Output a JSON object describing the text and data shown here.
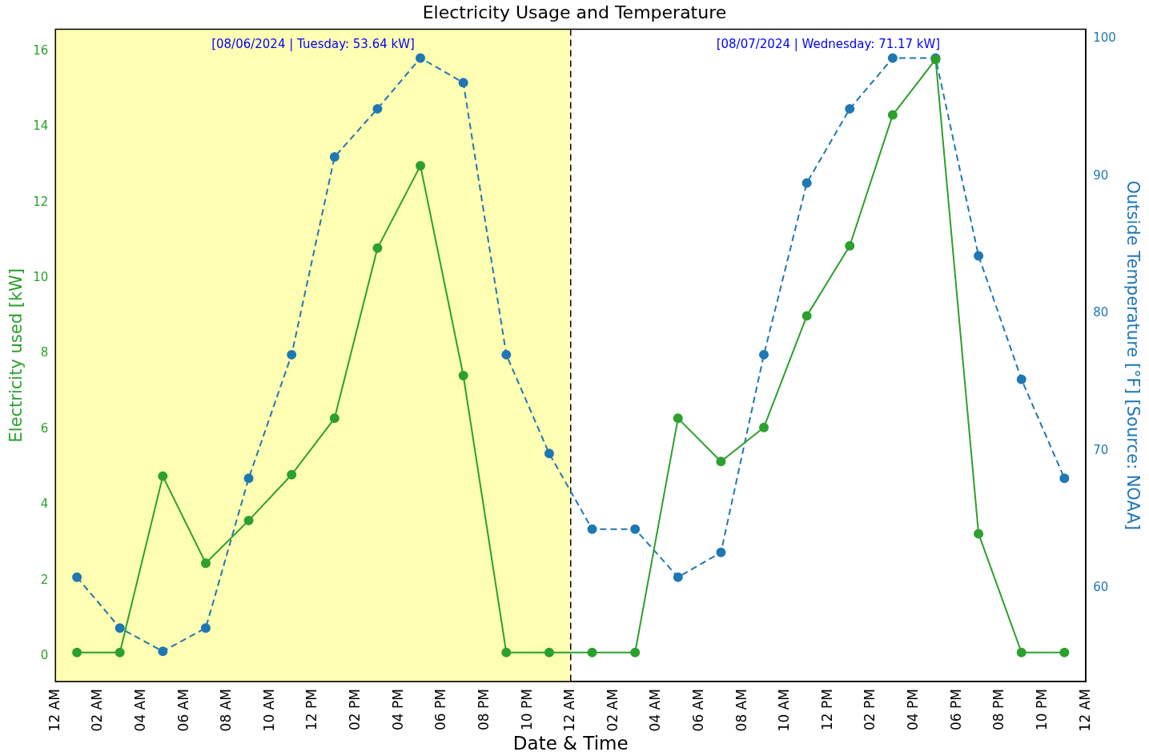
{
  "chart_data": {
    "type": "line",
    "title": "Electricity Usage and Temperature",
    "xlabel": "Date & Time",
    "ylabel": "Electricity used [kW]",
    "y2label": "Outside Temperature [°F] [Source: NOAA]",
    "x": [
      "2024-08-06T01:00",
      "2024-08-06T03:00",
      "2024-08-06T05:00",
      "2024-08-06T07:00",
      "2024-08-06T09:00",
      "2024-08-06T11:00",
      "2024-08-06T13:00",
      "2024-08-06T15:00",
      "2024-08-06T17:00",
      "2024-08-06T19:00",
      "2024-08-06T21:00",
      "2024-08-06T23:00",
      "2024-08-07T01:00",
      "2024-08-07T03:00",
      "2024-08-07T05:00",
      "2024-08-07T07:00",
      "2024-08-07T09:00",
      "2024-08-07T11:00",
      "2024-08-07T13:00",
      "2024-08-07T15:00",
      "2024-08-07T17:00",
      "2024-08-07T19:00",
      "2024-08-07T21:00",
      "2024-08-07T23:00"
    ],
    "series": [
      {
        "color": "#2ca02c",
        "line_style": "solid",
        "values": [
          0.1,
          0.1,
          4.76,
          2.46,
          3.59,
          4.8,
          6.29,
          10.79,
          12.97,
          7.42,
          0.1,
          0.1,
          0.1,
          0.1,
          6.29,
          5.15,
          6.05,
          9.0,
          10.85,
          14.31,
          15.78,
          3.24,
          0.1,
          0.1
        ]
      },
      {
        "color": "#1f77b4",
        "line_style": "dashed",
        "axis": "y2",
        "values": [
          60.8,
          57.1,
          55.4,
          57.1,
          68.0,
          77.0,
          91.4,
          94.9,
          98.6,
          96.8,
          77.0,
          69.8,
          64.3,
          64.3,
          60.8,
          62.6,
          77.0,
          89.5,
          94.9,
          98.6,
          98.6,
          84.2,
          75.2,
          68.0
        ]
      }
    ],
    "xlim": [
      "2024-08-06T00:00",
      "2024-08-08T00:00"
    ],
    "xticks": [
      {
        "value": "2024-08-06T00:00",
        "label": "12 AM"
      },
      {
        "value": "2024-08-06T02:00",
        "label": "02 AM"
      },
      {
        "value": "2024-08-06T04:00",
        "label": "04 AM"
      },
      {
        "value": "2024-08-06T06:00",
        "label": "06 AM"
      },
      {
        "value": "2024-08-06T08:00",
        "label": "08 AM"
      },
      {
        "value": "2024-08-06T10:00",
        "label": "10 AM"
      },
      {
        "value": "2024-08-06T12:00",
        "label": "12 PM"
      },
      {
        "value": "2024-08-06T14:00",
        "label": "02 PM"
      },
      {
        "value": "2024-08-06T16:00",
        "label": "04 PM"
      },
      {
        "value": "2024-08-06T18:00",
        "label": "06 PM"
      },
      {
        "value": "2024-08-06T20:00",
        "label": "08 PM"
      },
      {
        "value": "2024-08-06T22:00",
        "label": "10 PM"
      },
      {
        "value": "2024-08-07T00:00",
        "label": "12 AM"
      },
      {
        "value": "2024-08-07T02:00",
        "label": "02 AM"
      },
      {
        "value": "2024-08-07T04:00",
        "label": "04 AM"
      },
      {
        "value": "2024-08-07T06:00",
        "label": "06 AM"
      },
      {
        "value": "2024-08-07T08:00",
        "label": "08 AM"
      },
      {
        "value": "2024-08-07T10:00",
        "label": "10 AM"
      },
      {
        "value": "2024-08-07T12:00",
        "label": "12 PM"
      },
      {
        "value": "2024-08-07T14:00",
        "label": "02 PM"
      },
      {
        "value": "2024-08-07T16:00",
        "label": "04 PM"
      },
      {
        "value": "2024-08-07T18:00",
        "label": "06 PM"
      },
      {
        "value": "2024-08-07T20:00",
        "label": "08 PM"
      },
      {
        "value": "2024-08-07T22:00",
        "label": "10 PM"
      },
      {
        "value": "2024-08-08T00:00",
        "label": "12 AM"
      }
    ],
    "ylim": [
      -0.67,
      16.58
    ],
    "yticks": [
      0,
      2,
      4,
      6,
      8,
      10,
      12,
      14,
      16
    ],
    "y2lim": [
      53.2,
      100.7
    ],
    "y2ticks": [
      60,
      70,
      80,
      90,
      100
    ],
    "bands": [
      {
        "axis": "x",
        "from": "2024-08-06T00:00",
        "to": "2024-08-07T00:00",
        "color": "#ffffb3"
      }
    ],
    "ref_lines": [
      {
        "axis": "x",
        "value": "2024-08-07T00:00",
        "color": "#000000",
        "line_style": "dashed"
      }
    ],
    "annotations": [
      "[08/06/2024 | Tuesday: 53.64 kW]",
      "[08/07/2024 | Wednesday: 71.17 kW]"
    ],
    "marker": "circle",
    "grid": false,
    "legend": false
  }
}
